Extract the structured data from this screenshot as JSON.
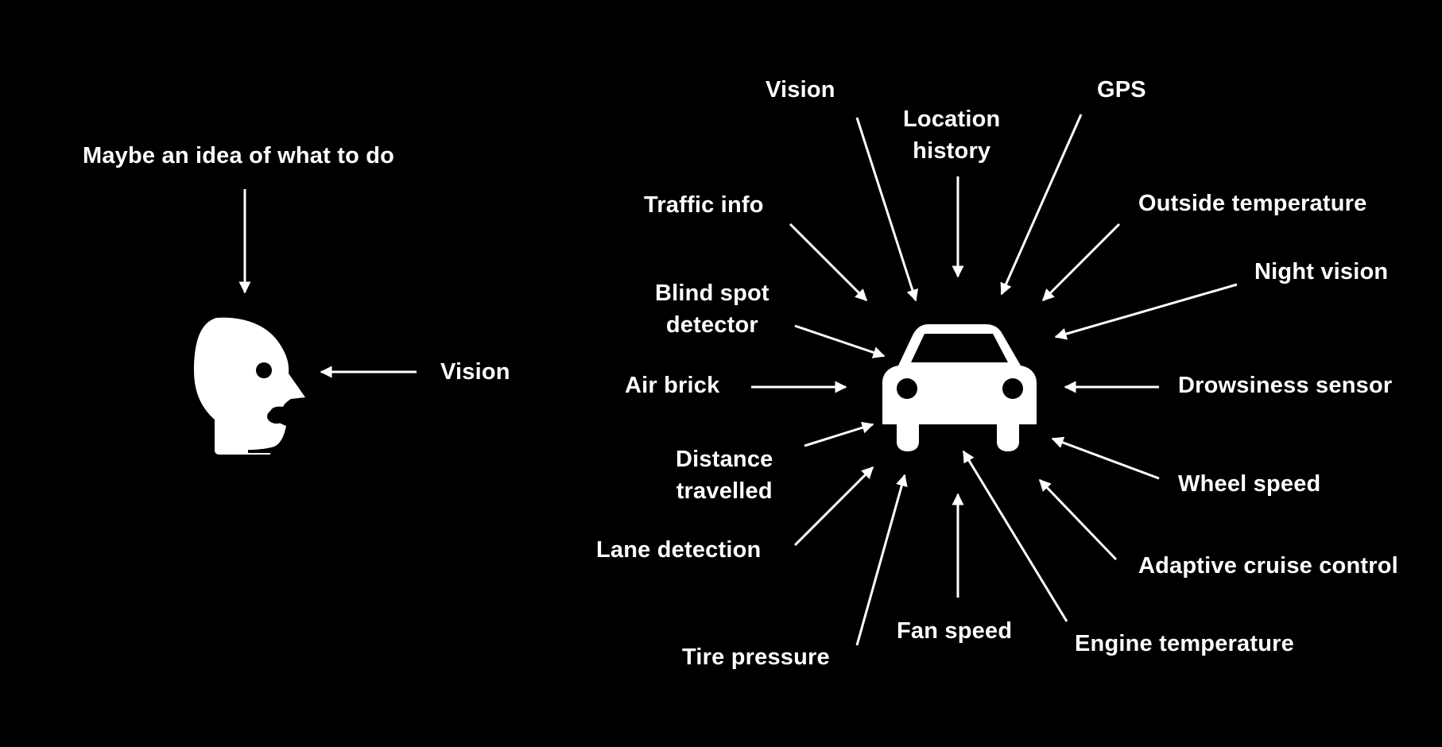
{
  "colors": {
    "background": "#000000",
    "foreground": "#ffffff"
  },
  "human": {
    "icon": "head-profile-icon",
    "top_label": "Maybe an idea of what to do",
    "vision_label": "Vision"
  },
  "car": {
    "icon": "car-front-icon",
    "labels": {
      "vision": "Vision",
      "location_history_1": "Location",
      "location_history_2": "history",
      "gps": "GPS",
      "traffic_info": "Traffic info",
      "outside_temperature": "Outside temperature",
      "night_vision": "Night vision",
      "blind_spot_1": "Blind spot",
      "blind_spot_2": "detector",
      "air_brick": "Air brick",
      "drowsiness_sensor": "Drowsiness sensor",
      "distance_travelled_1": "Distance",
      "distance_travelled_2": "travelled",
      "wheel_speed": "Wheel speed",
      "lane_detection": "Lane detection",
      "adaptive_cruise_control": "Adaptive cruise control",
      "tire_pressure": "Tire pressure",
      "fan_speed": "Fan speed",
      "engine_temperature": "Engine temperature"
    }
  }
}
